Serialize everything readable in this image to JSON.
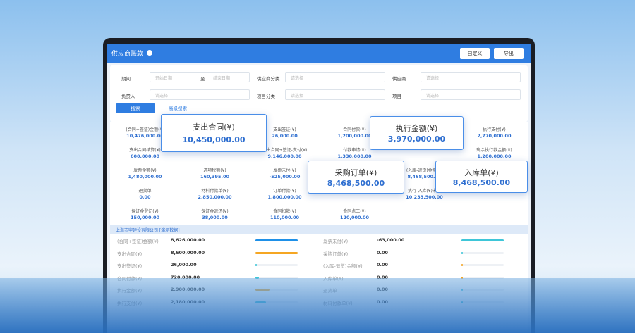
{
  "header": {
    "title": "供应商账款",
    "buttons": [
      "自定义",
      "导出"
    ]
  },
  "filters": {
    "rows": [
      [
        {
          "label": "期间",
          "placeholder": "开始日期",
          "separator": "至",
          "placeholder2": "结束日期"
        },
        {
          "label": "供应商分类",
          "placeholder": "请选择"
        },
        {
          "label": "供应商",
          "placeholder": "请选择"
        }
      ],
      [
        {
          "label": "负责人",
          "placeholder": "请选择"
        },
        {
          "label": "项目分类",
          "placeholder": "请选择"
        },
        {
          "label": "项目",
          "placeholder": "请选择"
        }
      ]
    ],
    "buttons": [
      "搜索",
      "高级搜索"
    ]
  },
  "stats": {
    "rows": [
      [
        {
          "label": "(合同+签证)金额(¥)",
          "value": "10,476,000.00"
        },
        null,
        {
          "label": "支出签证(¥)",
          "value": "26,000.00"
        },
        {
          "label": "合同付款(¥)",
          "value": "1,200,000.00"
        },
        null,
        {
          "label": "执行支付(¥)",
          "value": "2,770,000.00"
        }
      ],
      [
        {
          "label": "支出合同结算(¥)",
          "value": "600,000.00"
        },
        null,
        {
          "label": "支出合同+签证-支付(¥)",
          "value": "9,146,000.00"
        },
        {
          "label": "付款申请(¥)",
          "value": "1,330,000.00"
        },
        null,
        {
          "label": "剩余执行款金额(¥)",
          "value": "1,200,000.00"
        }
      ],
      [
        {
          "label": "发票金额(¥)",
          "value": "1,480,000.00"
        },
        {
          "label": "进项税额(¥)",
          "value": "160,395.00"
        },
        {
          "label": "发票未付(¥)",
          "value": "-525,000.00"
        },
        null,
        {
          "label": "(入库-退货)金额(¥)",
          "value": "8,468,500.00"
        },
        null
      ],
      [
        {
          "label": "退货单",
          "value": "0.00"
        },
        {
          "label": "材料付款单(¥)",
          "value": "2,850,000.00"
        },
        {
          "label": "订单付款(¥)",
          "value": "1,800,000.00"
        },
        null,
        {
          "label": "执行-入库(¥)未付",
          "value": "10,233,500.00"
        },
        null
      ],
      [
        {
          "label": "保证金登记(¥)",
          "value": "150,000.00"
        },
        {
          "label": "保证金退还(¥)",
          "value": "38,000.00"
        },
        {
          "label": "合同扣款(¥)",
          "value": "110,000.00"
        },
        {
          "label": "合同点工(¥)",
          "value": "120,000.00"
        },
        null,
        null
      ]
    ]
  },
  "callouts": [
    {
      "label": "支出合同(¥)",
      "value": "10,450,000.00"
    },
    {
      "label": "执行金额(¥)",
      "value": "3,970,000.00"
    },
    {
      "label": "采购订单(¥)",
      "value": "8,468,500.00"
    },
    {
      "label": "入库单(¥)",
      "value": "8,468,500.00"
    }
  ],
  "section": {
    "title": "上海市宇建设有限公司 [演示数据]",
    "left": [
      {
        "label": "(合同+签证)金额(¥)",
        "value": 8626000,
        "value_label": "8,626,000.00",
        "color": "#1e90e8"
      },
      {
        "label": "支出合同(¥)",
        "value": 8600000,
        "value_label": "8,600,000.00",
        "color": "#f5a623"
      },
      {
        "label": "支出签证(¥)",
        "value": 26000,
        "value_label": "26,000.00",
        "color": "#3ec6d8"
      },
      {
        "label": "合同付款(¥)",
        "value": 720000,
        "value_label": "720,000.00",
        "color": "#3ec6d8"
      },
      {
        "label": "执行金额(¥)",
        "value": 2900000,
        "value_label": "2,900,000.00",
        "color": "#f5a623"
      },
      {
        "label": "执行支付(¥)",
        "value": 2180000,
        "value_label": "2,180,000.00",
        "color": "#3ec6d8"
      }
    ],
    "right": [
      {
        "label": "发票未付(¥)",
        "value": -63000,
        "value_label": "-63,000.00",
        "color": "#3ec6d8"
      },
      {
        "label": "采购订单(¥)",
        "value": 0,
        "value_label": "0.00",
        "color": "#3ec6d8"
      },
      {
        "label": "(入库-退货)金额(¥)",
        "value": 0,
        "value_label": "0.00",
        "color": "#f5a623"
      },
      {
        "label": "入库单(¥)",
        "value": 0,
        "value_label": "0.00",
        "color": "#f5a623"
      },
      {
        "label": "退货单",
        "value": 0,
        "value_label": "0.00",
        "color": "#3ec6d8"
      },
      {
        "label": "材料付款单(¥)",
        "value": 0,
        "value_label": "0.00",
        "color": "#3ec6d8"
      }
    ]
  }
}
